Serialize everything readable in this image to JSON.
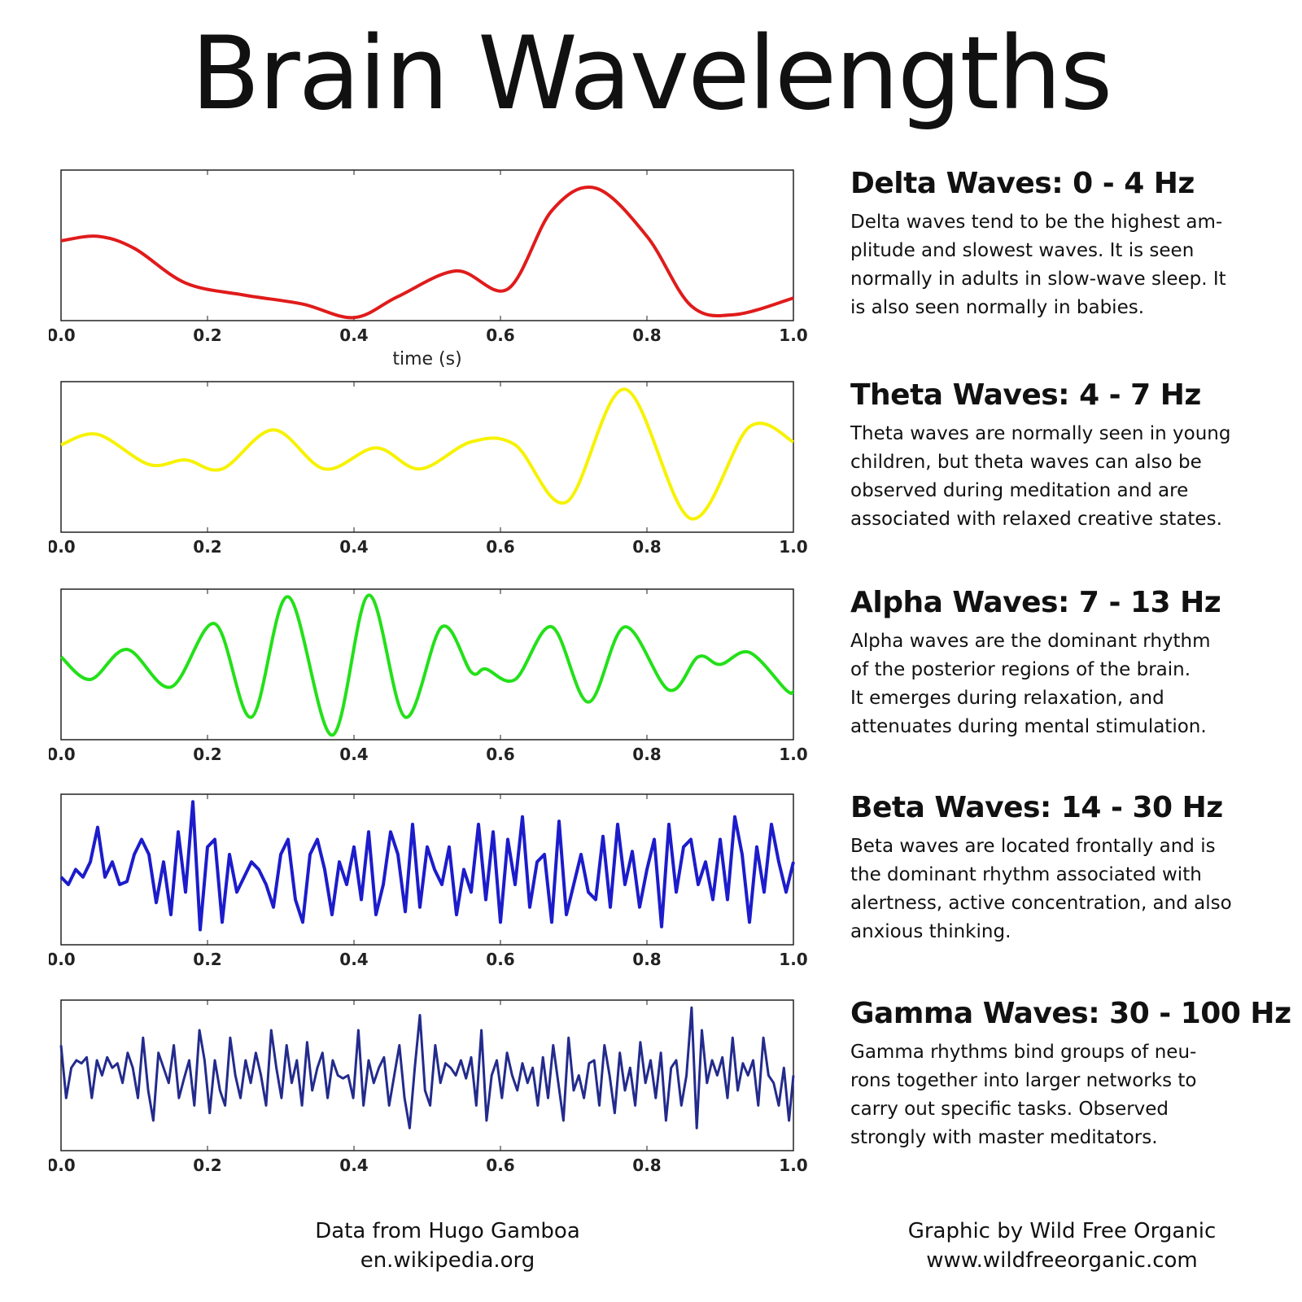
{
  "title": "Brain Wavelengths",
  "chart_data": [
    {
      "type": "line",
      "name": "delta",
      "color": "#e01b1b",
      "xlim": [
        0.0,
        1.0
      ],
      "ylim": [
        0,
        1
      ],
      "xticks": [
        "0.0",
        "0.2",
        "0.4",
        "0.6",
        "0.8",
        "1.0"
      ],
      "xlabel": "time (s)",
      "x": [
        0.0,
        0.05,
        0.1,
        0.17,
        0.25,
        0.33,
        0.4,
        0.46,
        0.54,
        0.61,
        0.67,
        0.73,
        0.8,
        0.86,
        0.92,
        1.0
      ],
      "y": [
        0.53,
        0.56,
        0.48,
        0.25,
        0.17,
        0.11,
        0.02,
        0.16,
        0.33,
        0.21,
        0.73,
        0.88,
        0.56,
        0.1,
        0.04,
        0.15
      ],
      "heading": "Delta Waves: 0 - 4 Hz",
      "description": [
        "Delta waves tend to be the highest am-",
        "plitude and slowest waves. It is seen",
        "normally in adults in slow-wave sleep. It",
        "is also seen normally in babies."
      ]
    },
    {
      "type": "line",
      "name": "theta",
      "color": "#f7f200",
      "xlim": [
        0.0,
        1.0
      ],
      "ylim": [
        0,
        1
      ],
      "xticks": [
        "0.0",
        "0.2",
        "0.4",
        "0.6",
        "0.8",
        "1.0"
      ],
      "xlabel": "",
      "x": [
        0.0,
        0.05,
        0.12,
        0.17,
        0.22,
        0.29,
        0.36,
        0.43,
        0.49,
        0.56,
        0.62,
        0.69,
        0.77,
        0.86,
        0.94,
        1.0
      ],
      "y": [
        0.58,
        0.65,
        0.45,
        0.48,
        0.42,
        0.68,
        0.42,
        0.56,
        0.42,
        0.6,
        0.58,
        0.2,
        0.95,
        0.09,
        0.7,
        0.6
      ],
      "heading": "Theta Waves: 4 - 7 Hz",
      "description": [
        "Theta waves are normally seen in young",
        "children, but theta waves can also be",
        "observed during meditation and are",
        "associated with relaxed creative states."
      ]
    },
    {
      "type": "line",
      "name": "alpha",
      "color": "#23e019",
      "xlim": [
        0.0,
        1.0
      ],
      "ylim": [
        0,
        1
      ],
      "xticks": [
        "0.0",
        "0.2",
        "0.4",
        "0.6",
        "0.8",
        "1.0"
      ],
      "xlabel": "",
      "x": [
        0.0,
        0.04,
        0.09,
        0.15,
        0.21,
        0.26,
        0.31,
        0.37,
        0.42,
        0.47,
        0.52,
        0.56,
        0.58,
        0.62,
        0.67,
        0.72,
        0.77,
        0.83,
        0.87,
        0.9,
        0.94,
        0.99,
        1.0
      ],
      "y": [
        0.55,
        0.4,
        0.6,
        0.35,
        0.77,
        0.15,
        0.95,
        0.03,
        0.96,
        0.15,
        0.75,
        0.45,
        0.47,
        0.4,
        0.75,
        0.25,
        0.75,
        0.33,
        0.55,
        0.5,
        0.58,
        0.33,
        0.32
      ],
      "heading": "Alpha Waves: 7 - 13 Hz",
      "description": [
        "Alpha waves are the dominant rhythm",
        "of the posterior regions of the brain.",
        "It emerges during relaxation, and",
        "attenuates during mental stimulation."
      ]
    },
    {
      "type": "line",
      "name": "beta",
      "color": "#1c1ccc",
      "xlim": [
        0.0,
        1.0
      ],
      "ylim": [
        0,
        1
      ],
      "xticks": [
        "0.0",
        "0.2",
        "0.4",
        "0.6",
        "0.8",
        "1.0"
      ],
      "xlabel": "",
      "x": [
        0.0,
        0.01,
        0.02,
        0.03,
        0.04,
        0.05,
        0.06,
        0.07,
        0.08,
        0.09,
        0.1,
        0.11,
        0.12,
        0.13,
        0.14,
        0.15,
        0.16,
        0.17,
        0.18,
        0.19,
        0.2,
        0.21,
        0.22,
        0.23,
        0.24,
        0.25,
        0.26,
        0.27,
        0.28,
        0.29,
        0.3,
        0.31,
        0.32,
        0.33,
        0.34,
        0.35,
        0.36,
        0.37,
        0.38,
        0.39,
        0.4,
        0.41,
        0.42,
        0.43,
        0.44,
        0.45,
        0.46,
        0.47,
        0.48,
        0.49,
        0.5,
        0.51,
        0.52,
        0.53,
        0.54,
        0.55,
        0.56,
        0.57,
        0.58,
        0.59,
        0.6,
        0.61,
        0.62,
        0.63,
        0.64,
        0.65,
        0.66,
        0.67,
        0.68,
        0.69,
        0.7,
        0.71,
        0.72,
        0.73,
        0.74,
        0.75,
        0.76,
        0.77,
        0.78,
        0.79,
        0.8,
        0.81,
        0.82,
        0.83,
        0.84,
        0.85,
        0.86,
        0.87,
        0.88,
        0.89,
        0.9,
        0.91,
        0.92,
        0.93,
        0.94,
        0.95,
        0.96,
        0.97,
        0.98,
        0.99,
        1.0
      ],
      "y": [
        0.45,
        0.4,
        0.5,
        0.45,
        0.55,
        0.78,
        0.45,
        0.55,
        0.4,
        0.42,
        0.6,
        0.7,
        0.6,
        0.28,
        0.55,
        0.2,
        0.75,
        0.35,
        0.95,
        0.1,
        0.65,
        0.7,
        0.15,
        0.6,
        0.35,
        0.45,
        0.55,
        0.5,
        0.4,
        0.25,
        0.6,
        0.7,
        0.3,
        0.15,
        0.6,
        0.7,
        0.5,
        0.2,
        0.55,
        0.4,
        0.65,
        0.3,
        0.75,
        0.2,
        0.4,
        0.75,
        0.6,
        0.22,
        0.8,
        0.25,
        0.65,
        0.5,
        0.4,
        0.65,
        0.2,
        0.5,
        0.35,
        0.8,
        0.3,
        0.75,
        0.15,
        0.7,
        0.4,
        0.85,
        0.25,
        0.55,
        0.6,
        0.15,
        0.82,
        0.2,
        0.4,
        0.6,
        0.35,
        0.3,
        0.72,
        0.25,
        0.8,
        0.4,
        0.62,
        0.25,
        0.5,
        0.7,
        0.12,
        0.8,
        0.35,
        0.65,
        0.7,
        0.4,
        0.55,
        0.3,
        0.7,
        0.3,
        0.85,
        0.6,
        0.15,
        0.65,
        0.35,
        0.8,
        0.55,
        0.35,
        0.55
      ],
      "heading": "Beta Waves: 14 - 30 Hz",
      "description": [
        "Beta waves are located frontally and is",
        "the dominant rhythm associated with",
        "alertness, active concentration, and also",
        "anxious thinking."
      ]
    },
    {
      "type": "line",
      "name": "gamma",
      "color": "#232b8c",
      "xlim": [
        0.0,
        1.0
      ],
      "ylim": [
        0,
        1
      ],
      "xticks": [
        "0.0",
        "0.2",
        "0.4",
        "0.6",
        "0.8",
        "1.0"
      ],
      "xlabel": "",
      "x": [
        0.0,
        0.007,
        0.014,
        0.021,
        0.028,
        0.035,
        0.042,
        0.049,
        0.056,
        0.063,
        0.07,
        0.077,
        0.084,
        0.091,
        0.098,
        0.105,
        0.112,
        0.119,
        0.126,
        0.133,
        0.14,
        0.147,
        0.154,
        0.161,
        0.168,
        0.175,
        0.182,
        0.189,
        0.196,
        0.203,
        0.21,
        0.217,
        0.224,
        0.231,
        0.238,
        0.245,
        0.252,
        0.259,
        0.266,
        0.273,
        0.28,
        0.287,
        0.294,
        0.301,
        0.308,
        0.315,
        0.322,
        0.329,
        0.336,
        0.343,
        0.35,
        0.357,
        0.364,
        0.371,
        0.378,
        0.385,
        0.392,
        0.399,
        0.406,
        0.413,
        0.42,
        0.427,
        0.434,
        0.441,
        0.448,
        0.455,
        0.462,
        0.469,
        0.476,
        0.483,
        0.49,
        0.497,
        0.504,
        0.511,
        0.518,
        0.525,
        0.532,
        0.539,
        0.546,
        0.553,
        0.56,
        0.567,
        0.574,
        0.581,
        0.588,
        0.595,
        0.602,
        0.609,
        0.616,
        0.623,
        0.63,
        0.637,
        0.644,
        0.651,
        0.658,
        0.665,
        0.672,
        0.679,
        0.686,
        0.693,
        0.7,
        0.707,
        0.714,
        0.721,
        0.728,
        0.735,
        0.742,
        0.749,
        0.756,
        0.763,
        0.77,
        0.777,
        0.784,
        0.791,
        0.798,
        0.805,
        0.812,
        0.819,
        0.826,
        0.833,
        0.84,
        0.847,
        0.854,
        0.861,
        0.868,
        0.875,
        0.882,
        0.889,
        0.896,
        0.903,
        0.91,
        0.917,
        0.924,
        0.931,
        0.938,
        0.945,
        0.952,
        0.959,
        0.966,
        0.973,
        0.98,
        0.987,
        0.994,
        1.0
      ],
      "y": [
        0.7,
        0.35,
        0.55,
        0.6,
        0.58,
        0.62,
        0.35,
        0.6,
        0.5,
        0.62,
        0.55,
        0.58,
        0.45,
        0.65,
        0.55,
        0.35,
        0.75,
        0.4,
        0.2,
        0.65,
        0.55,
        0.45,
        0.7,
        0.35,
        0.48,
        0.6,
        0.3,
        0.8,
        0.6,
        0.25,
        0.6,
        0.4,
        0.3,
        0.75,
        0.5,
        0.35,
        0.6,
        0.45,
        0.65,
        0.5,
        0.3,
        0.8,
        0.55,
        0.35,
        0.7,
        0.45,
        0.6,
        0.3,
        0.72,
        0.4,
        0.55,
        0.65,
        0.35,
        0.6,
        0.5,
        0.48,
        0.5,
        0.35,
        0.8,
        0.3,
        0.6,
        0.45,
        0.55,
        0.62,
        0.3,
        0.5,
        0.7,
        0.35,
        0.15,
        0.55,
        0.9,
        0.4,
        0.3,
        0.7,
        0.45,
        0.58,
        0.55,
        0.5,
        0.6,
        0.48,
        0.62,
        0.3,
        0.8,
        0.2,
        0.5,
        0.6,
        0.35,
        0.65,
        0.5,
        0.4,
        0.58,
        0.45,
        0.55,
        0.3,
        0.62,
        0.35,
        0.7,
        0.45,
        0.2,
        0.75,
        0.4,
        0.5,
        0.35,
        0.58,
        0.6,
        0.3,
        0.7,
        0.5,
        0.25,
        0.65,
        0.4,
        0.55,
        0.3,
        0.72,
        0.45,
        0.6,
        0.35,
        0.65,
        0.2,
        0.55,
        0.6,
        0.3,
        0.5,
        0.95,
        0.15,
        0.8,
        0.45,
        0.6,
        0.5,
        0.62,
        0.35,
        0.75,
        0.4,
        0.58,
        0.5,
        0.6,
        0.3,
        0.75,
        0.5,
        0.45,
        0.3,
        0.55,
        0.2,
        0.5
      ],
      "heading": "Gamma Waves: 30 - 100 Hz",
      "description": [
        "Gamma rhythms bind groups of neu-",
        "rons together into larger networks to",
        "carry out specific tasks. Observed",
        "strongly with master meditators."
      ]
    }
  ],
  "footer": {
    "left": [
      "Data from Hugo Gamboa",
      "en.wikipedia.org"
    ],
    "right": [
      "Graphic by Wild Free Organic",
      "www.wildfreeorganic.com"
    ]
  }
}
